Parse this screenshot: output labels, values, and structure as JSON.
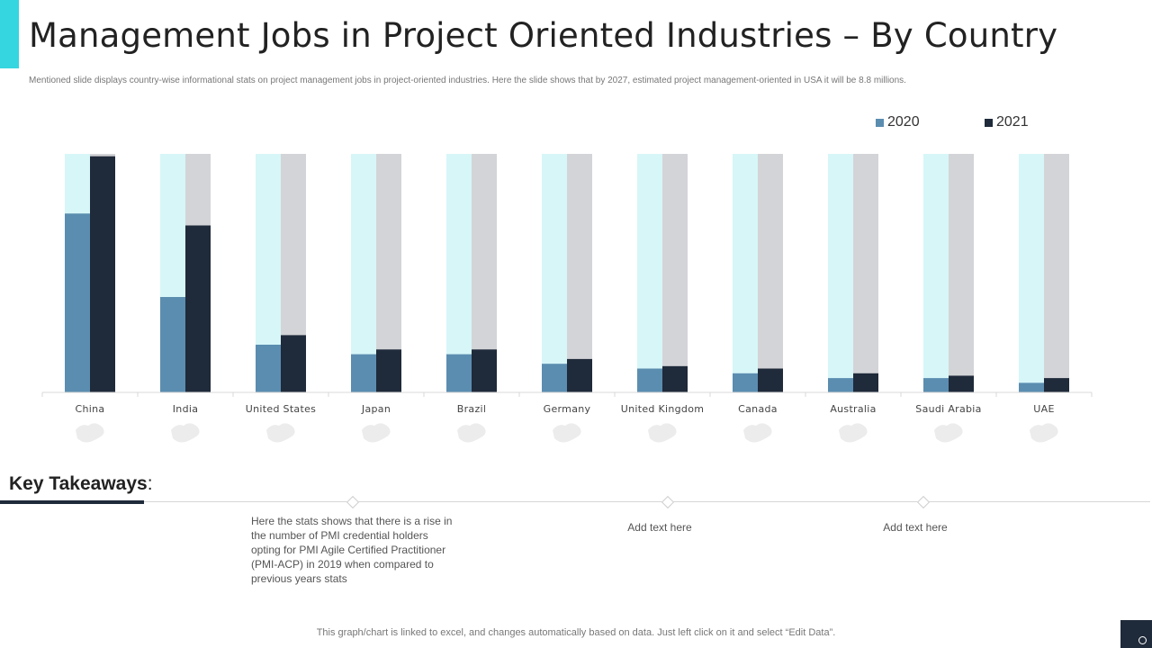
{
  "header": {
    "title": "Management Jobs in Project Oriented Industries – By Country",
    "subtitle": "Mentioned slide displays country-wise informational stats on project management  jobs in  project-oriented industries. Here the slide shows that by 2027, estimated project management-oriented  in USA it will be 8.8 millions."
  },
  "chart_data": {
    "type": "bar",
    "title": "",
    "xlabel": "",
    "ylabel": "",
    "ylim": [
      0,
      100
    ],
    "categories": [
      "China",
      "India",
      "United States",
      "Japan",
      "Brazil",
      "Germany",
      "United Kingdom",
      "Canada",
      "Australia",
      "Saudi Arabia",
      "UAE"
    ],
    "series": [
      {
        "name": "2020",
        "color": "#5b8db0",
        "values": [
          75,
          40,
          20,
          16,
          16,
          12,
          10,
          8,
          6,
          6,
          4
        ]
      },
      {
        "name": "2021",
        "color": "#1f2a3a",
        "values": [
          99,
          70,
          24,
          18,
          18,
          14,
          11,
          10,
          8,
          7,
          6
        ]
      }
    ],
    "background_colors": [
      "#d7f6f8",
      "#d3d4d7"
    ],
    "legend_position": "top-right"
  },
  "takeaways": {
    "heading": "Key Takeaways",
    "colon": ":",
    "main_text": "Here the stats shows that there is a rise in the number of PMI credential holders opting for PMI Agile Certified Practitioner (PMI-ACP) in 2019 when compared to previous  years stats",
    "col2_text": "Add text here",
    "col3_text": "Add text here"
  },
  "footer": {
    "note": "This graph/chart is linked to excel,  and changes automatically based on data. Just left click on it and select “Edit Data”."
  }
}
